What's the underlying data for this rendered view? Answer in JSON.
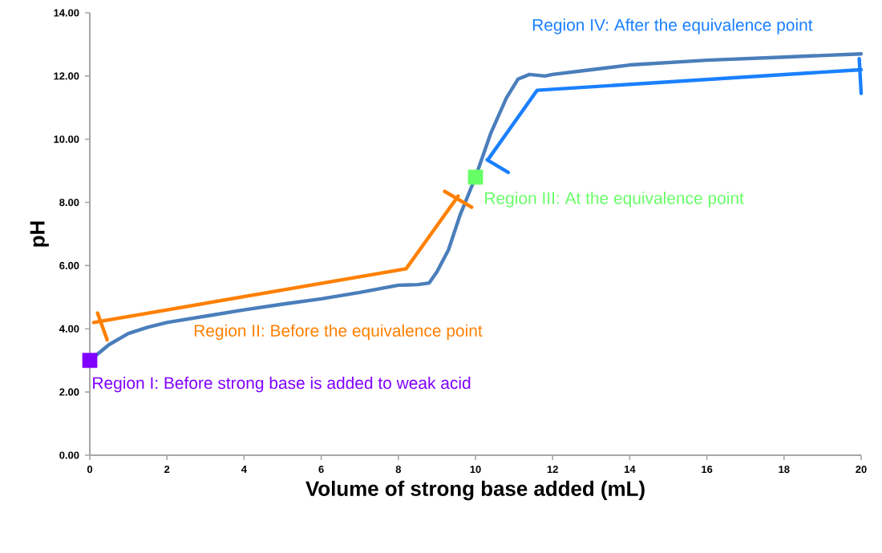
{
  "chart_data": {
    "type": "line",
    "xlabel": "Volume of strong base added (mL)",
    "ylabel": "pH",
    "xlim": [
      0,
      20
    ],
    "ylim": [
      0,
      14
    ],
    "xticks": [
      0,
      2,
      4,
      6,
      8,
      10,
      12,
      14,
      16,
      18,
      20
    ],
    "yticks": [
      {
        "value": 0,
        "label": "0.00"
      },
      {
        "value": 2,
        "label": "2.00"
      },
      {
        "value": 4,
        "label": "4.00"
      },
      {
        "value": 6,
        "label": "6.00"
      },
      {
        "value": 8,
        "label": "8.00"
      },
      {
        "value": 10,
        "label": "10.00"
      },
      {
        "value": 12,
        "label": "12.00"
      },
      {
        "value": 14,
        "label": "14.00"
      }
    ],
    "series": [
      {
        "color": "#4a7ebb",
        "x": [
          0,
          0.5,
          1,
          1.5,
          2,
          3,
          4,
          5,
          6,
          7,
          8,
          8.5,
          8.8,
          9,
          9.3,
          9.6,
          10,
          10.4,
          10.8,
          11.1,
          11.4,
          11.8,
          12,
          13,
          14,
          16,
          18,
          20
        ],
        "values": [
          3.0,
          3.5,
          3.85,
          4.05,
          4.2,
          4.4,
          4.6,
          4.78,
          4.95,
          5.15,
          5.38,
          5.4,
          5.45,
          5.8,
          6.5,
          7.6,
          8.8,
          10.2,
          11.3,
          11.9,
          12.05,
          12.0,
          12.05,
          12.2,
          12.35,
          12.5,
          12.6,
          12.7
        ]
      },
      {
        "name": "Region II: Before the equivalence point",
        "color": "#ff8000",
        "x": [
          0.1,
          8.2,
          9.55
        ],
        "values": [
          4.2,
          5.9,
          8.2
        ]
      },
      {
        "color": "#ff8000",
        "x": [
          0.2,
          0.45
        ],
        "values": [
          4.5,
          3.65
        ]
      },
      {
        "color": "#ff8000",
        "x": [
          9.2,
          9.9
        ],
        "values": [
          8.35,
          7.85
        ]
      },
      {
        "name": "Region IV: After the equivalence point",
        "color": "#1a80ff",
        "x": [
          20,
          11.6,
          10.35
        ],
        "values": [
          12.2,
          11.55,
          9.4
        ]
      },
      {
        "color": "#1a80ff",
        "x": [
          19.95,
          20
        ],
        "values": [
          12.55,
          11.45
        ]
      },
      {
        "color": "#1a80ff",
        "x": [
          10.3,
          10.85
        ],
        "values": [
          9.35,
          8.95
        ]
      },
      {
        "name": "Region I: Before strong base is added to weak acid",
        "type": "scatter",
        "color": "#8000ff",
        "marker": "square",
        "x": [
          0
        ],
        "values": [
          3.0
        ]
      },
      {
        "name": "Region III: At the equivalence point",
        "type": "scatter",
        "color": "#66ff66",
        "marker": "square",
        "x": [
          10
        ],
        "values": [
          8.8
        ]
      }
    ]
  }
}
